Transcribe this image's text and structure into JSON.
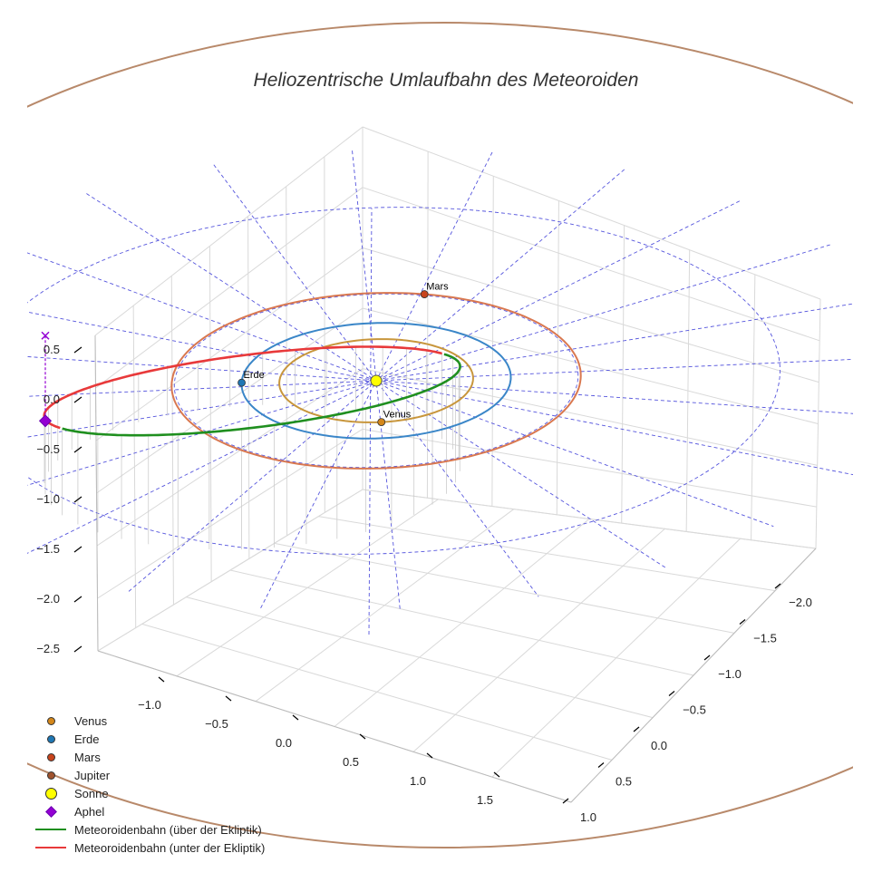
{
  "chart_data": {
    "type": "line",
    "title": "Heliozentrische Umlaufbahn des Meteoroiden",
    "axes": {
      "x_ticks": [
        "−1.0",
        "−0.5",
        "0.0",
        "0.5",
        "1.0",
        "1.5"
      ],
      "y_ticks": [
        "−2.0",
        "−1.5",
        "−1.0",
        "−0.5",
        "0.0",
        "0.5",
        "1.0"
      ],
      "z_ticks": [
        "0.5",
        "0.0",
        "−0.5",
        "−1.0",
        "−1.5",
        "−2.0",
        "−2.5"
      ]
    },
    "planets": [
      {
        "name": "Venus",
        "radius_au": 0.72,
        "color": "#c8963c",
        "marker_color": "#d4871a"
      },
      {
        "name": "Erde",
        "radius_au": 1.0,
        "color": "#3a86c8",
        "marker_color": "#1f77b4"
      },
      {
        "name": "Mars",
        "radius_au": 1.52,
        "color": "#d97850",
        "marker_color": "#c8441c"
      },
      {
        "name": "Jupiter",
        "radius_au": 5.2,
        "color": "#b8896a",
        "marker_color": "#a0522d"
      }
    ],
    "sun": {
      "name": "Sonne",
      "color": "#ffff00"
    },
    "aphel": {
      "name": "Aphel",
      "color": "#9400d3"
    },
    "series": [
      {
        "name": "Meteoroidenbahn (über der Ekliptik)",
        "color": "#1f8f1f"
      },
      {
        "name": "Meteoroidenbahn (unter der Ekliptik)",
        "color": "#e8393a"
      }
    ],
    "legend_placement": "bottom-left",
    "grid": true
  }
}
